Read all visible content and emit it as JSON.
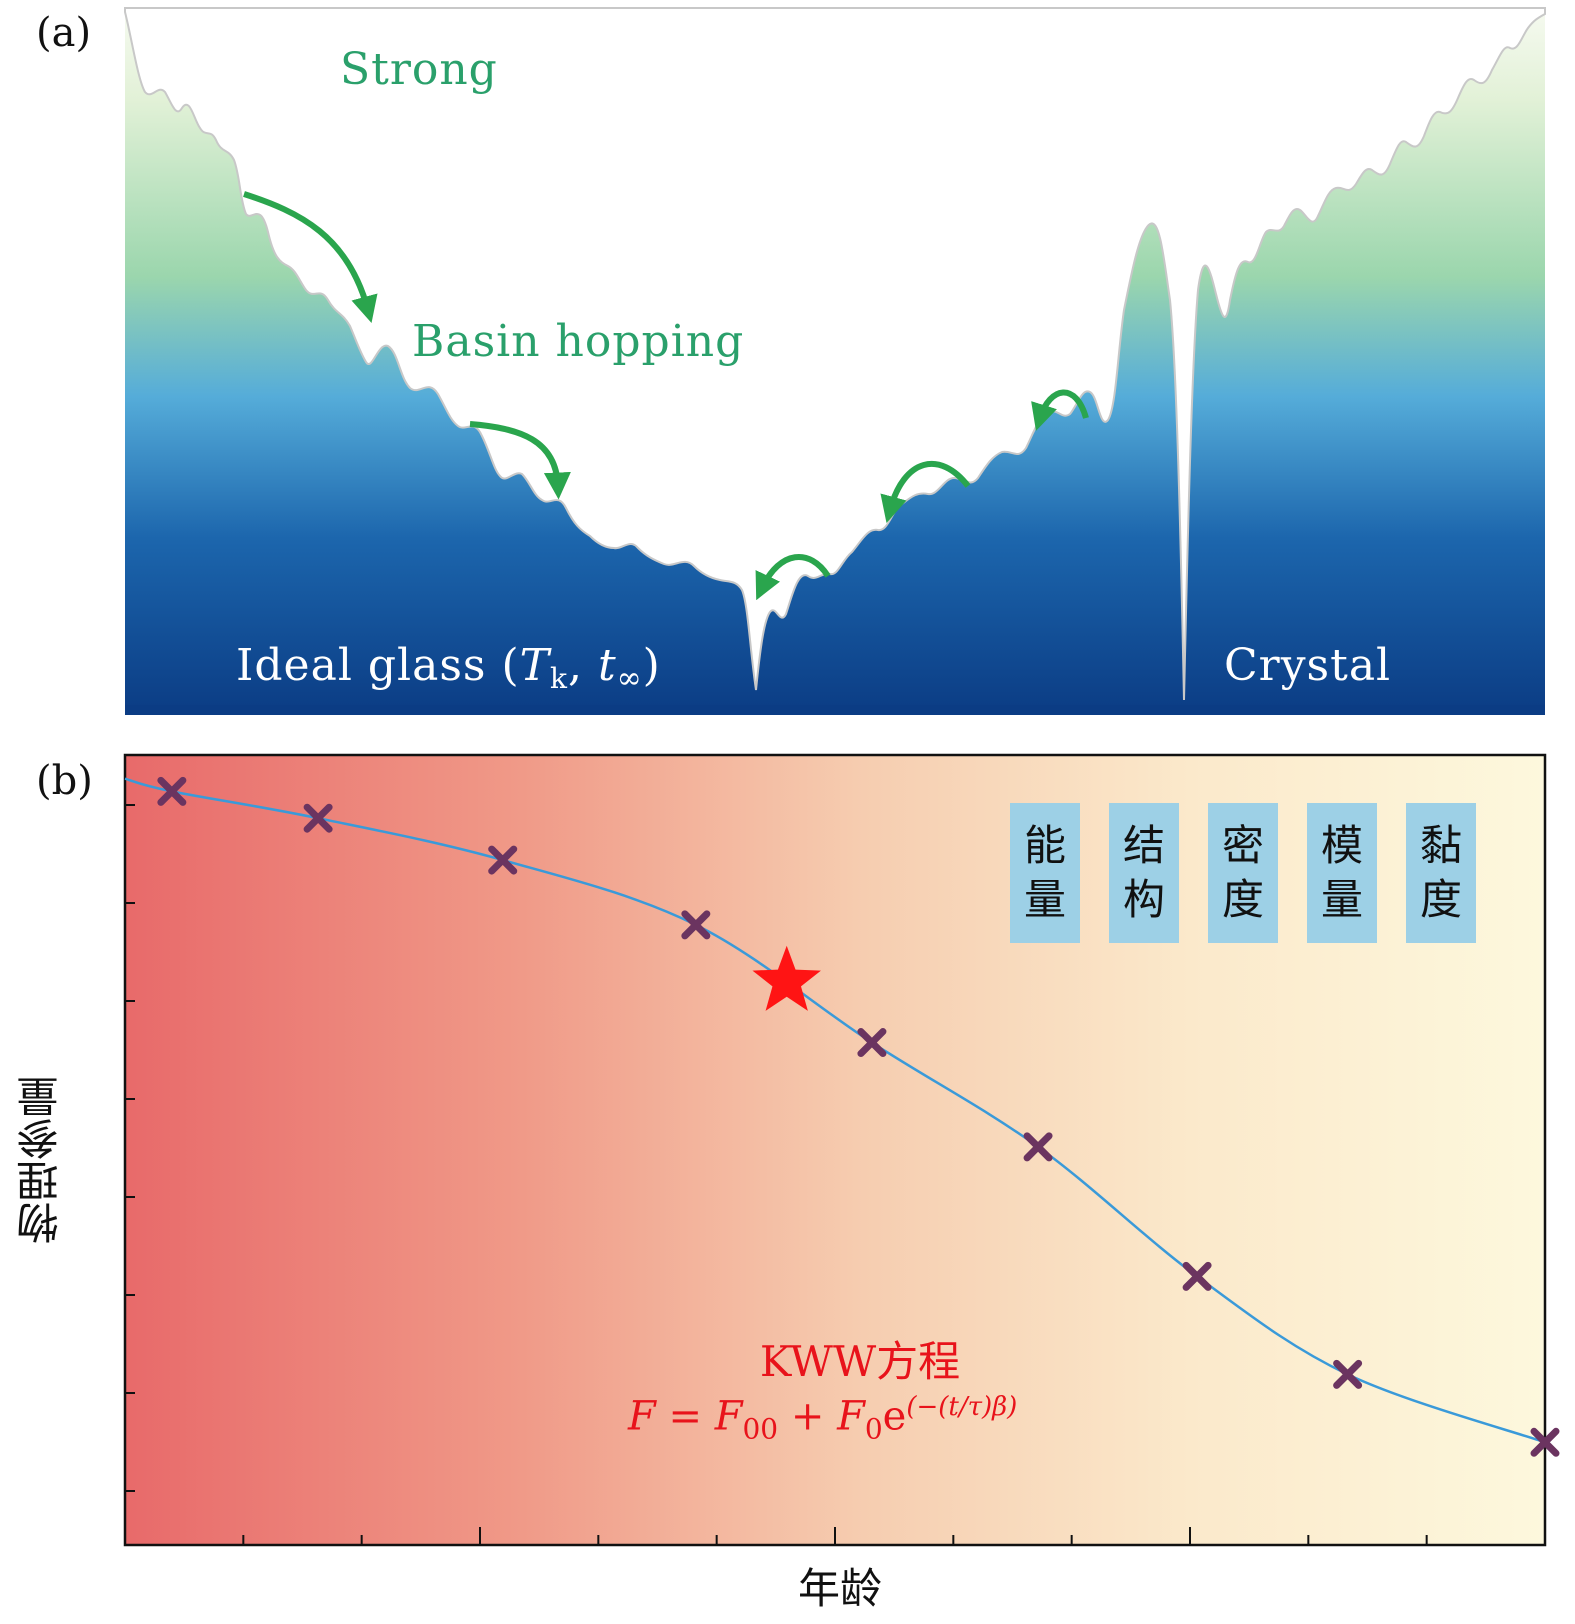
{
  "panel_a": {
    "label": "(a)",
    "strong": "Strong",
    "basin_hopping": "Basin hopping",
    "ideal_glass_prefix": "Ideal glass (",
    "ideal_glass_T": "T",
    "ideal_glass_T_sub": "k",
    "ideal_glass_sep": ", ",
    "ideal_glass_t": "t",
    "ideal_glass_t_sub": "∞",
    "ideal_glass_suffix": ")",
    "crystal": "Crystal",
    "colors": {
      "top": "#f2f8ea",
      "mid_green": "#9fd7ad",
      "mid_blue": "#4fa8d6",
      "bottom": "#0c3f86",
      "arrow": "#2aa54d"
    }
  },
  "panel_b": {
    "label": "(b)",
    "y_label": "物理参量",
    "x_label": "年龄",
    "properties": [
      {
        "line1": "能",
        "line2": "量"
      },
      {
        "line1": "结",
        "line2": "构"
      },
      {
        "line1": "密",
        "line2": "度"
      },
      {
        "line1": "模",
        "line2": "量"
      },
      {
        "line1": "黏",
        "line2": "度"
      }
    ],
    "equation_title": "KWW方程",
    "equation": {
      "F": "F",
      "eq": " = ",
      "F00": "F",
      "F00_sub": "00",
      "plus": " + ",
      "F0": "F",
      "F0_sub": "0",
      "e": "e",
      "exponent": "(−(t/τ)β)"
    },
    "colors": {
      "left": "#e86a6a",
      "mid": "#f7d3b4",
      "right": "#fdf7dc",
      "curve": "#3a9ad9",
      "marker": "#6b3460",
      "star": "#ff1414"
    }
  },
  "chart_data": {
    "type": "scatter",
    "title": "",
    "xlabel": "年龄",
    "ylabel": "物理参量",
    "xlim": [
      0,
      10
    ],
    "ylim": [
      0,
      10
    ],
    "points": {
      "x": [
        0.33,
        1.36,
        2.66,
        4.02,
        5.26,
        6.43,
        7.55,
        8.61,
        10.0
      ],
      "y": [
        9.54,
        9.2,
        8.67,
        7.85,
        6.36,
        5.04,
        3.4,
        2.16,
        1.3
      ]
    },
    "highlight": {
      "x": 4.66,
      "y": 7.13,
      "marker": "star"
    },
    "fit_curve": "KWW",
    "x_ticks_count": 12,
    "y_ticks_count": 8
  }
}
